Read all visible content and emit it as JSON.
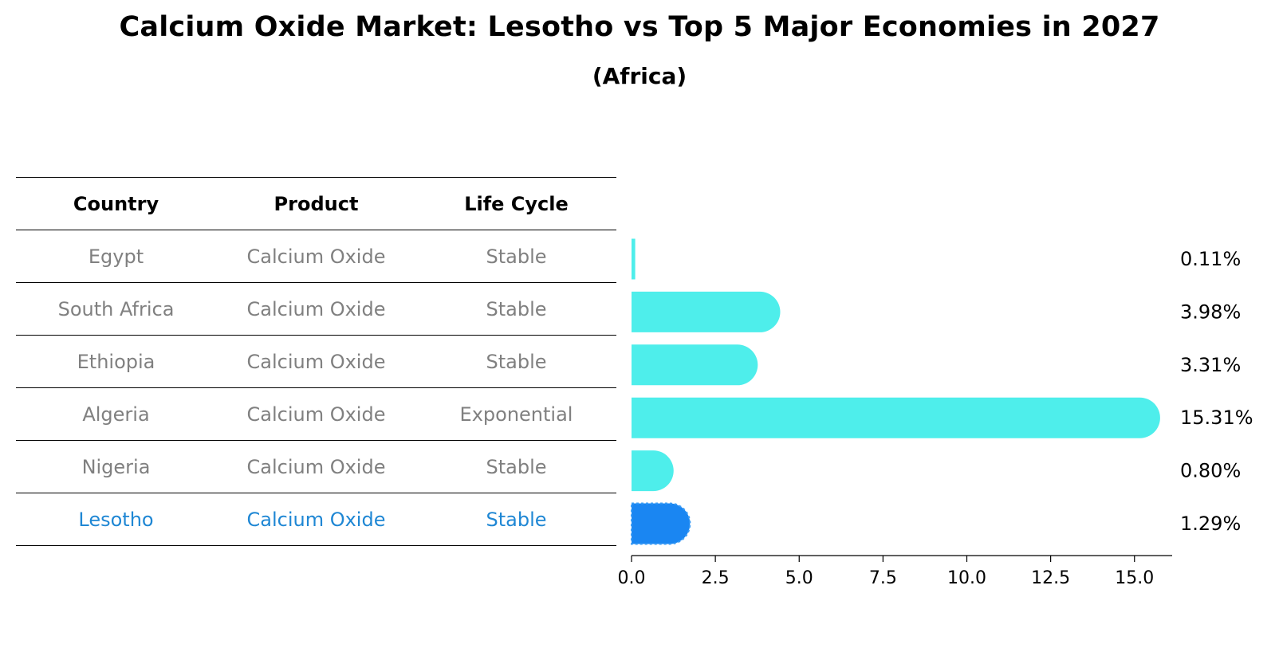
{
  "title": "Calcium Oxide Market: Lesotho vs Top 5 Major Economies in 2027",
  "subtitle": "(Africa)",
  "table": {
    "headers": [
      "Country",
      "Product",
      "Life Cycle"
    ],
    "rows": [
      {
        "country": "Egypt",
        "product": "Calcium Oxide",
        "life_cycle": "Stable",
        "highlight": false
      },
      {
        "country": "South Africa",
        "product": "Calcium Oxide",
        "life_cycle": "Stable",
        "highlight": false
      },
      {
        "country": "Ethiopia",
        "product": "Calcium Oxide",
        "life_cycle": "Stable",
        "highlight": false
      },
      {
        "country": "Algeria",
        "product": "Calcium Oxide",
        "life_cycle": "Exponential",
        "highlight": false
      },
      {
        "country": "Nigeria",
        "product": "Calcium Oxide",
        "life_cycle": "Stable",
        "highlight": false
      },
      {
        "country": "Lesotho",
        "product": "Calcium Oxide",
        "life_cycle": "Stable",
        "highlight": true
      }
    ]
  },
  "chart_data": {
    "type": "bar",
    "orientation": "horizontal",
    "title": "Calcium Oxide Market: Lesotho vs Top 5 Major Economies in 2027",
    "subtitle": "(Africa)",
    "categories": [
      "Egypt",
      "South Africa",
      "Ethiopia",
      "Algeria",
      "Nigeria",
      "Lesotho"
    ],
    "values": [
      0.11,
      3.98,
      3.31,
      15.31,
      0.8,
      1.29
    ],
    "value_labels": [
      "0.11%",
      "3.98%",
      "3.31%",
      "15.31%",
      "0.80%",
      "1.29%"
    ],
    "xlim": [
      0,
      16.1
    ],
    "xticks": [
      0.0,
      2.5,
      5.0,
      7.5,
      10.0,
      12.5,
      15.0
    ],
    "xtick_labels": [
      "0.0",
      "2.5",
      "5.0",
      "7.5",
      "10.0",
      "12.5",
      "15.0"
    ],
    "xlabel": "",
    "ylabel": "",
    "grid": false,
    "colors": {
      "bar": "#4eeeeb",
      "highlight_bar": "#1a86f2",
      "highlight_text": "#1f87d4",
      "muted_text": "#808080"
    }
  }
}
